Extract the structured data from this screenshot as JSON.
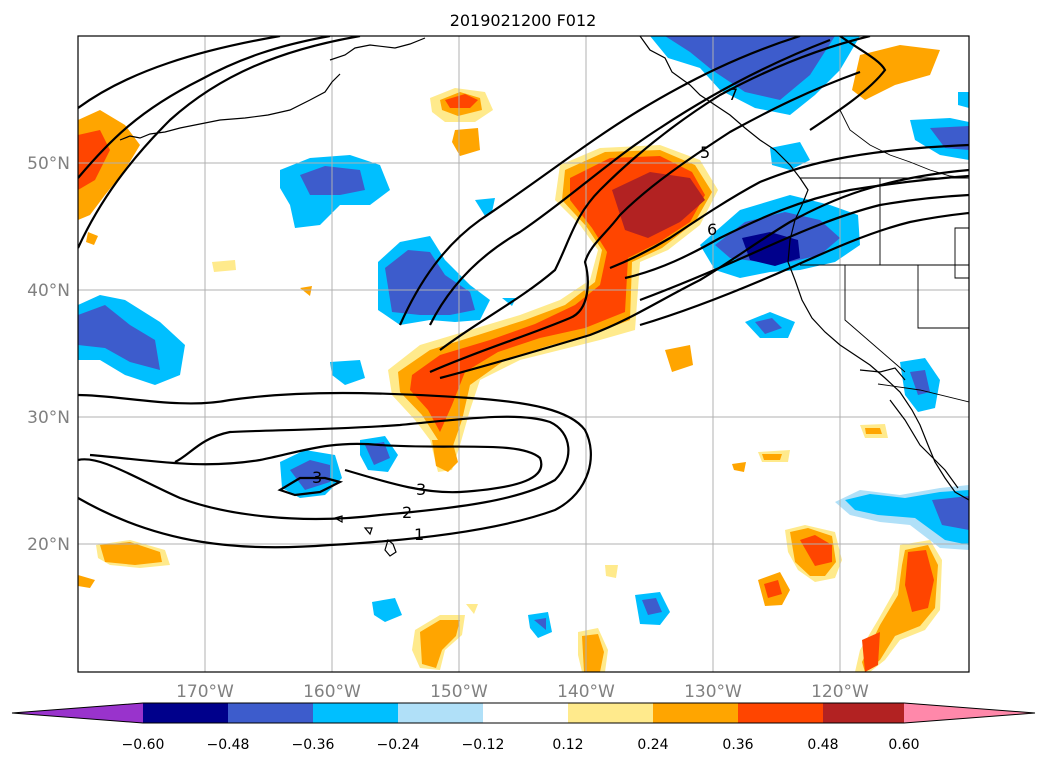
{
  "title": "2019021200 F012",
  "lat_labels": [
    "50°N",
    "40°N",
    "30°N",
    "20°N"
  ],
  "lon_labels": [
    "170°W",
    "160°W",
    "150°W",
    "140°W",
    "130°W",
    "120°W"
  ],
  "colorbar": {
    "colors": [
      "#9933cc",
      "#00008b",
      "#3d5ccc",
      "#00bfff",
      "#b0e0f8",
      "#ffffff",
      "#ffea8c",
      "#ffa500",
      "#ff4500",
      "#b22222",
      "#ff88aa"
    ],
    "tick_labels": [
      "−0.60",
      "−0.48",
      "−0.36",
      "−0.24",
      "−0.12",
      "0.12",
      "0.24",
      "0.36",
      "0.48",
      "0.60"
    ]
  },
  "contour_labels": [
    "1",
    "2",
    "3",
    "3",
    "5",
    "6",
    "7"
  ]
}
